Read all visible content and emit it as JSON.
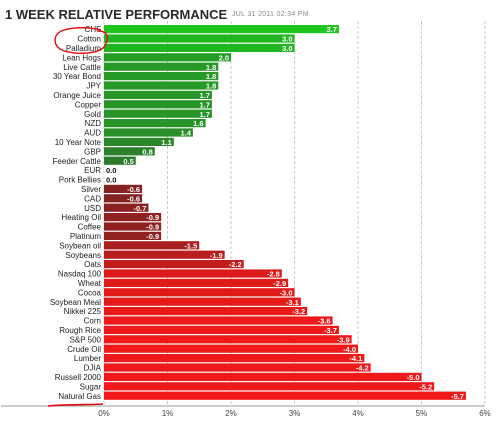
{
  "header": {
    "title": "1 WEEK RELATIVE PERFORMANCE",
    "timestamp": "JUL 31 2011 02:34 PM"
  },
  "colors": {
    "positive_bright": "#1ec81e",
    "positive_dark": "#2f6e2f",
    "negative_dark": "#6e2424",
    "negative_bright": "#f01818",
    "grid": "#c8c8c8",
    "annotation": "#e01010"
  },
  "chart_data": {
    "type": "bar",
    "orientation": "horizontal",
    "title": "1 WEEK RELATIVE PERFORMANCE",
    "categories": [
      "CHF",
      "Cotton",
      "Palladium",
      "Lean Hogs",
      "Live Cattle",
      "30 Year Bond",
      "JPY",
      "Orange Juice",
      "Copper",
      "Gold",
      "NZD",
      "AUD",
      "10 Year Note",
      "GBP",
      "Feeder Cattle",
      "EUR",
      "Pork Bellies",
      "Silver",
      "CAD",
      "USD",
      "Heating Oil",
      "Coffee",
      "Platinum",
      "Soybean oil",
      "Soybeans",
      "Oats",
      "Nasdaq 100",
      "Wheat",
      "Cocoa",
      "Soybean Meal",
      "Nikkei 225",
      "Corn",
      "Rough Rice",
      "S&P 500",
      "Crude Oil",
      "Lumber",
      "DJIA",
      "Russell 2000",
      "Sugar",
      "Natural Gas"
    ],
    "values": [
      3.7,
      3.0,
      3.0,
      2.0,
      1.8,
      1.8,
      1.8,
      1.7,
      1.7,
      1.7,
      1.6,
      1.4,
      1.1,
      0.8,
      0.5,
      0.0,
      0.0,
      -0.6,
      -0.6,
      -0.7,
      -0.9,
      -0.9,
      -0.9,
      -1.5,
      -1.9,
      -2.2,
      -2.8,
      -2.9,
      -3.0,
      -3.1,
      -3.2,
      -3.6,
      -3.7,
      -3.9,
      -4.0,
      -4.1,
      -4.2,
      -5.0,
      -5.2,
      -5.7
    ],
    "value_labels": [
      "3.7",
      "3.0",
      "3.0",
      "2.0",
      "1.8",
      "1.8",
      "1.8",
      "1.7",
      "1.7",
      "1.7",
      "1.6",
      "1.4",
      "1.1",
      "0.8",
      "0.5",
      "0.0",
      "0.0",
      "-0.6",
      "-0.6",
      "-0.7",
      "-0.9",
      "-0.9",
      "-0.9",
      "-1.5",
      "-1.9",
      "-2.2",
      "-2.8",
      "-2.9",
      "-3.0",
      "-3.1",
      "-3.2",
      "-3.6",
      "-3.7",
      "-3.9",
      "-4.0",
      "-4.1",
      "-4.2",
      "-5.0",
      "-5.2",
      "-5.7"
    ],
    "x_ticks": [
      "0%",
      "1%",
      "2%",
      "3%",
      "4%",
      "5%",
      "6%"
    ],
    "x_tick_values": [
      0,
      1,
      2,
      3,
      4,
      5,
      6
    ],
    "xlim": [
      0,
      6
    ],
    "grid": "vertical dashed",
    "bar_length": "absolute value",
    "annotations": [
      "red circle around Cotton and Palladium labels",
      "red underline under Natural Gas"
    ]
  }
}
